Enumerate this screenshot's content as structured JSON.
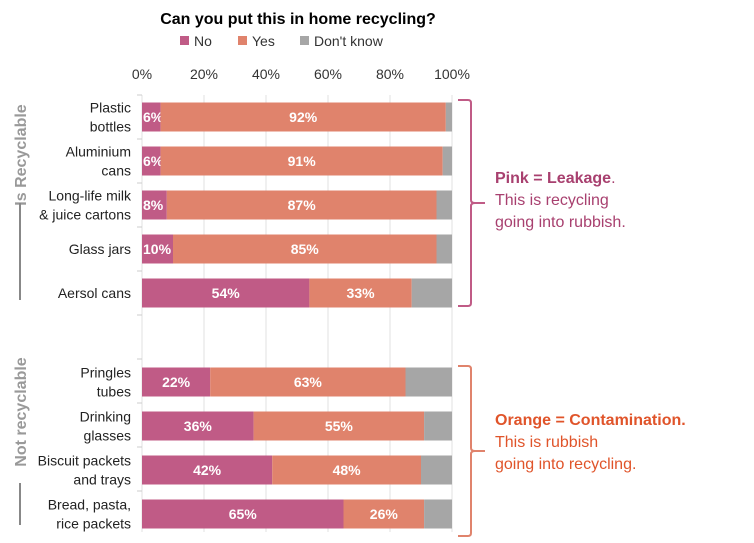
{
  "chart_data": {
    "type": "bar",
    "orientation": "horizontal",
    "stacked": true,
    "title": "Can you put this in home recycling?",
    "xlabel": "",
    "ylabel": "",
    "xlim": [
      0,
      100
    ],
    "x_ticks": [
      "0%",
      "20%",
      "40%",
      "60%",
      "80%",
      "100%"
    ],
    "legend": {
      "placement": "top",
      "entries": [
        "No",
        "Yes",
        "Don't know"
      ]
    },
    "categories": [
      [
        "Plastic",
        "bottles"
      ],
      [
        "Aluminium",
        "cans"
      ],
      [
        "Long-life milk",
        "& juice cartons"
      ],
      [
        "Glass jars"
      ],
      [
        "Aersol cans"
      ],
      [
        "Pringles",
        "tubes"
      ],
      [
        "Drinking",
        "glasses"
      ],
      [
        "Biscuit packets",
        "and trays"
      ],
      [
        "Bread, pasta,",
        "rice packets"
      ]
    ],
    "series": [
      {
        "name": "No",
        "color": "#c05b86",
        "values": [
          6,
          6,
          8,
          10,
          54,
          22,
          36,
          42,
          65
        ]
      },
      {
        "name": "Yes",
        "color": "#e0836c",
        "values": [
          92,
          91,
          87,
          85,
          33,
          63,
          55,
          48,
          26
        ]
      },
      {
        "name": "Don't know",
        "color": "#a6a6a6",
        "values": [
          2,
          3,
          5,
          5,
          13,
          15,
          9,
          10,
          9
        ]
      }
    ],
    "data_labels": [
      [
        "6%",
        "92%"
      ],
      [
        "6%",
        "91%"
      ],
      [
        "8%",
        "87%"
      ],
      [
        "10%",
        "85%"
      ],
      [
        "54%",
        "33%"
      ],
      [
        "22%",
        "63%"
      ],
      [
        "36%",
        "55%"
      ],
      [
        "42%",
        "48%"
      ],
      [
        "65%",
        "26%"
      ]
    ],
    "groups": [
      {
        "label": "Is Recyclable",
        "rows": [
          0,
          4
        ]
      },
      {
        "label": "Not recyclable",
        "rows": [
          5,
          8
        ]
      }
    ],
    "annotations": [
      {
        "bold": "Pink = Leakage",
        "bold_suffix": ".",
        "lines": [
          "This is recycling",
          "going into rubbish."
        ],
        "color": "#a8406f",
        "bracket_color": "#c05b86"
      },
      {
        "bold": "Orange = Contamination.",
        "bold_suffix": "",
        "lines": [
          "This is rubbish",
          "going into recycling."
        ],
        "color": "#e0542a",
        "bracket_color": "#e0836c"
      }
    ]
  }
}
